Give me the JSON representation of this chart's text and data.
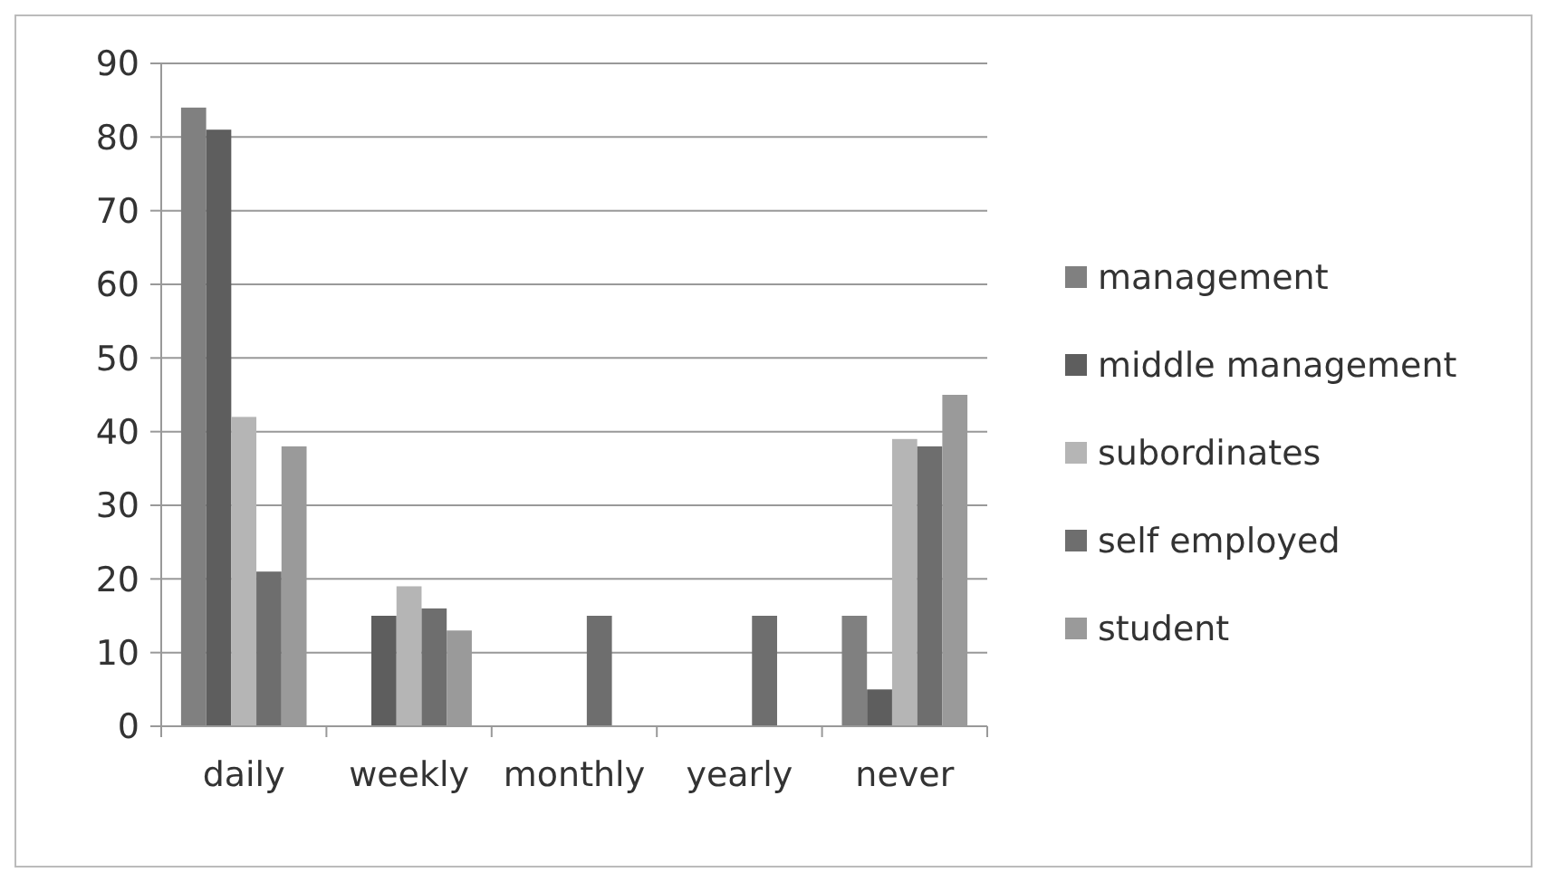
{
  "chart_data": {
    "type": "bar",
    "categories": [
      "daily",
      "weekly",
      "monthly",
      "yearly",
      "never"
    ],
    "series": [
      {
        "name": "management",
        "color": "#808080",
        "values": [
          84,
          0,
          0,
          0,
          15
        ]
      },
      {
        "name": "middle management",
        "color": "#5e5e5e",
        "values": [
          81,
          15,
          0,
          0,
          5
        ]
      },
      {
        "name": "subordinates",
        "color": "#b5b5b5",
        "values": [
          42,
          19,
          0,
          0,
          39
        ]
      },
      {
        "name": "self employed",
        "color": "#6e6e6e",
        "values": [
          21,
          16,
          15,
          15,
          38
        ]
      },
      {
        "name": "student",
        "color": "#9a9a9a",
        "values": [
          38,
          13,
          0,
          0,
          45
        ]
      }
    ],
    "ylim": [
      0,
      90
    ],
    "yticks": [
      0,
      10,
      20,
      30,
      40,
      50,
      60,
      70,
      80,
      90
    ],
    "grid": "y",
    "legend": "right"
  }
}
